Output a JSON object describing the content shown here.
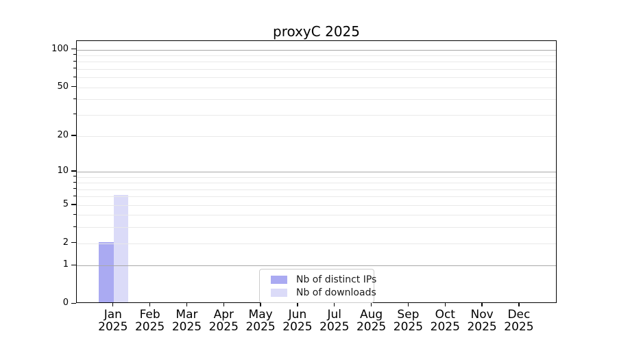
{
  "title": "proxyC 2025",
  "chart_data": {
    "type": "bar",
    "title": "proxyC 2025",
    "categories": [
      "Jan",
      "Feb",
      "Mar",
      "Apr",
      "May",
      "Jun",
      "Jul",
      "Aug",
      "Sep",
      "Oct",
      "Nov",
      "Dec"
    ],
    "year_label": "2025",
    "series": [
      {
        "name": "Nb of distinct IPs",
        "color": "#aaaaf2",
        "values": [
          2,
          0,
          0,
          0,
          0,
          0,
          0,
          0,
          0,
          0,
          0,
          0
        ]
      },
      {
        "name": "Nb of downloads",
        "color": "#dbdbf8",
        "values": [
          6,
          0,
          0,
          0,
          0,
          0,
          0,
          0,
          0,
          0,
          0,
          0
        ]
      }
    ],
    "xlabel": "",
    "ylabel": "",
    "y_axis": {
      "scale": "log1p",
      "ylim": [
        0,
        117
      ],
      "major_ticks": [
        0,
        1,
        2,
        5,
        10,
        20,
        50,
        100
      ],
      "decade_gridlines": [
        1,
        10,
        100
      ],
      "minor_gridlines": [
        3,
        4,
        6,
        7,
        8,
        9,
        30,
        40,
        60,
        70,
        80,
        90
      ],
      "grid": true
    },
    "legend": {
      "position": "lower center",
      "entries": [
        "Nb of distinct IPs",
        "Nb of downloads"
      ]
    },
    "style": {
      "decade_grid_color": "#a8a8a8",
      "minor_grid_color": "#e9e9e9",
      "spine_color": "#000000",
      "background": "#ffffff"
    }
  }
}
